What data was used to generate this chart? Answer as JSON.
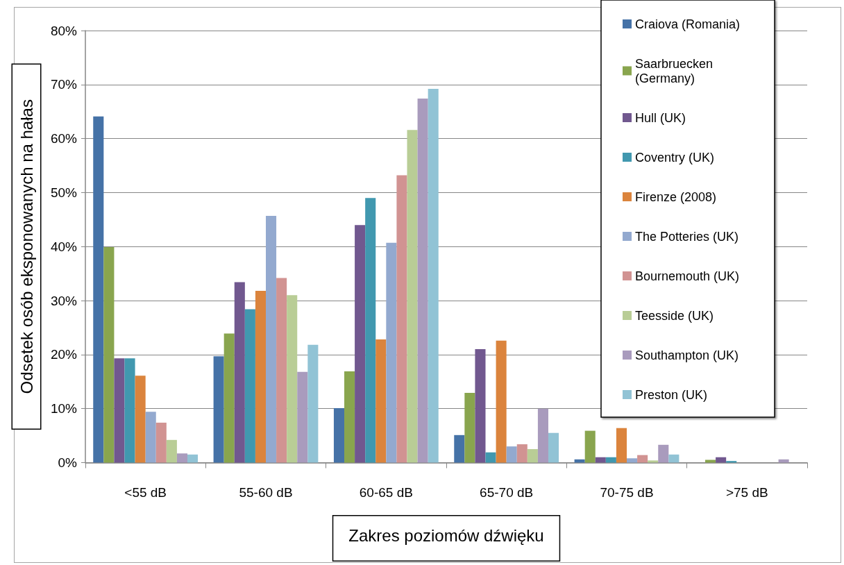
{
  "chart_data": {
    "type": "bar",
    "categories": [
      "<55 dB",
      "55-60 dB",
      "60-65 dB",
      "65-70 dB",
      "70-75 dB",
      ">75 dB"
    ],
    "xlabel": "Zakres poziomów dźwięku",
    "ylabel": "Odsetek osób eksponowanych na hałas",
    "ylim": [
      0,
      80
    ],
    "yticks": [
      {
        "value": 0,
        "label": "0%"
      },
      {
        "value": 10,
        "label": "10%"
      },
      {
        "value": 20,
        "label": "20%"
      },
      {
        "value": 30,
        "label": "30%"
      },
      {
        "value": 40,
        "label": "40%"
      },
      {
        "value": 50,
        "label": "50%"
      },
      {
        "value": 60,
        "label": "60%"
      },
      {
        "value": 70,
        "label": "70%"
      },
      {
        "value": 80,
        "label": "80%"
      }
    ],
    "grid": "y",
    "legend": "top right",
    "series": [
      {
        "name": "Craiova (Romania)",
        "color": "#4572a7",
        "values": [
          64.1,
          19.7,
          10.1,
          5.1,
          0.6,
          0
        ]
      },
      {
        "name": "Saarbruecken (Germany)",
        "color": "#89a54e",
        "values": [
          39.9,
          23.9,
          16.9,
          12.9,
          5.9,
          0.5
        ]
      },
      {
        "name": "Hull (UK)",
        "color": "#71588f",
        "values": [
          19.3,
          33.4,
          44.0,
          21.0,
          1.0,
          1.0
        ]
      },
      {
        "name": "Coventry (UK)",
        "color": "#4198af",
        "values": [
          19.3,
          28.4,
          49.0,
          1.9,
          1.0,
          0.3
        ]
      },
      {
        "name": "Firenze (2008)",
        "color": "#db843d",
        "values": [
          16.1,
          31.8,
          22.8,
          22.6,
          6.4,
          0
        ]
      },
      {
        "name": "The Potteries (UK)",
        "color": "#93a9cf",
        "values": [
          9.4,
          45.7,
          40.7,
          3.0,
          0.8,
          0
        ]
      },
      {
        "name": "Bournemouth (UK)",
        "color": "#d19392",
        "values": [
          7.4,
          34.2,
          53.2,
          3.4,
          1.4,
          0
        ]
      },
      {
        "name": "Teesside (UK)",
        "color": "#b9cd96",
        "values": [
          4.2,
          31.0,
          61.6,
          2.5,
          0.4,
          0
        ]
      },
      {
        "name": "Southampton (UK)",
        "color": "#a99bbd",
        "values": [
          1.7,
          16.8,
          67.4,
          10.0,
          3.3,
          0.6
        ]
      },
      {
        "name": "Preston (UK)",
        "color": "#91c3d5",
        "values": [
          1.5,
          21.8,
          69.2,
          5.5,
          1.5,
          0
        ]
      }
    ]
  }
}
